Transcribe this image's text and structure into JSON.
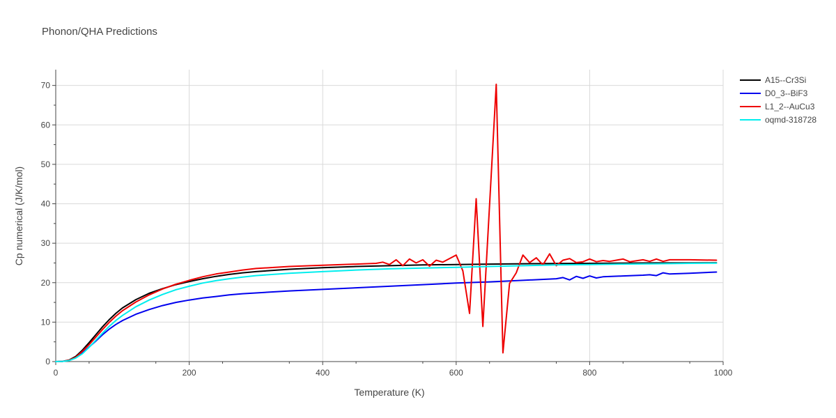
{
  "chart_data": {
    "type": "line",
    "title": "Phonon/QHA Predictions",
    "xlabel": "Temperature (K)",
    "ylabel": "Cp numerical (J/K/mol)",
    "xlim": [
      0,
      1000
    ],
    "ylim": [
      0,
      74
    ],
    "x_ticks": [
      0,
      200,
      400,
      600,
      800,
      1000
    ],
    "y_ticks": [
      0,
      10,
      20,
      30,
      40,
      50,
      60,
      70
    ],
    "grid": true,
    "legend_position": "top-right",
    "series": [
      {
        "name": "A15--Cr3Si",
        "color": "#000000",
        "points": [
          [
            0,
            0
          ],
          [
            10,
            0.05
          ],
          [
            20,
            0.4
          ],
          [
            30,
            1.3
          ],
          [
            40,
            2.9
          ],
          [
            50,
            4.8
          ],
          [
            60,
            6.8
          ],
          [
            70,
            8.8
          ],
          [
            80,
            10.6
          ],
          [
            90,
            12.2
          ],
          [
            100,
            13.6
          ],
          [
            120,
            15.7
          ],
          [
            140,
            17.3
          ],
          [
            160,
            18.5
          ],
          [
            180,
            19.5
          ],
          [
            200,
            20.3
          ],
          [
            220,
            21.0
          ],
          [
            240,
            21.6
          ],
          [
            260,
            22.1
          ],
          [
            280,
            22.5
          ],
          [
            300,
            22.8
          ],
          [
            350,
            23.4
          ],
          [
            400,
            23.8
          ],
          [
            450,
            24.1
          ],
          [
            500,
            24.3
          ],
          [
            550,
            24.5
          ],
          [
            600,
            24.6
          ],
          [
            650,
            24.7
          ],
          [
            700,
            24.8
          ],
          [
            750,
            24.85
          ],
          [
            800,
            24.9
          ],
          [
            850,
            24.95
          ],
          [
            900,
            25.0
          ],
          [
            950,
            25.0
          ],
          [
            990,
            25.05
          ]
        ]
      },
      {
        "name": "D0_3--BiF3",
        "color": "#0000ee",
        "points": [
          [
            0,
            0
          ],
          [
            10,
            0.04
          ],
          [
            20,
            0.3
          ],
          [
            30,
            1.0
          ],
          [
            40,
            2.2
          ],
          [
            50,
            3.7
          ],
          [
            60,
            5.2
          ],
          [
            70,
            6.8
          ],
          [
            80,
            8.2
          ],
          [
            90,
            9.4
          ],
          [
            100,
            10.4
          ],
          [
            120,
            12.0
          ],
          [
            140,
            13.2
          ],
          [
            160,
            14.2
          ],
          [
            180,
            15.0
          ],
          [
            200,
            15.6
          ],
          [
            220,
            16.1
          ],
          [
            240,
            16.5
          ],
          [
            260,
            16.9
          ],
          [
            280,
            17.2
          ],
          [
            300,
            17.4
          ],
          [
            350,
            17.9
          ],
          [
            400,
            18.3
          ],
          [
            450,
            18.7
          ],
          [
            500,
            19.1
          ],
          [
            550,
            19.5
          ],
          [
            600,
            19.9
          ],
          [
            650,
            20.2
          ],
          [
            700,
            20.6
          ],
          [
            750,
            21.0
          ],
          [
            760,
            21.3
          ],
          [
            770,
            20.7
          ],
          [
            780,
            21.6
          ],
          [
            790,
            21.1
          ],
          [
            800,
            21.7
          ],
          [
            810,
            21.2
          ],
          [
            820,
            21.5
          ],
          [
            850,
            21.7
          ],
          [
            880,
            21.9
          ],
          [
            890,
            22.0
          ],
          [
            900,
            21.8
          ],
          [
            910,
            22.5
          ],
          [
            920,
            22.2
          ],
          [
            950,
            22.4
          ],
          [
            990,
            22.7
          ]
        ]
      },
      {
        "name": "L1_2--AuCu3",
        "color": "#ee0000",
        "points": [
          [
            0,
            0
          ],
          [
            10,
            0.05
          ],
          [
            20,
            0.35
          ],
          [
            30,
            1.1
          ],
          [
            40,
            2.6
          ],
          [
            50,
            4.3
          ],
          [
            60,
            6.2
          ],
          [
            70,
            8.1
          ],
          [
            80,
            9.9
          ],
          [
            90,
            11.5
          ],
          [
            100,
            12.9
          ],
          [
            120,
            15.1
          ],
          [
            140,
            16.9
          ],
          [
            160,
            18.4
          ],
          [
            180,
            19.6
          ],
          [
            200,
            20.6
          ],
          [
            220,
            21.5
          ],
          [
            240,
            22.2
          ],
          [
            260,
            22.7
          ],
          [
            280,
            23.2
          ],
          [
            300,
            23.6
          ],
          [
            350,
            24.1
          ],
          [
            400,
            24.4
          ],
          [
            450,
            24.7
          ],
          [
            480,
            24.9
          ],
          [
            490,
            25.2
          ],
          [
            500,
            24.6
          ],
          [
            510,
            25.8
          ],
          [
            520,
            24.3
          ],
          [
            530,
            26.0
          ],
          [
            540,
            25.0
          ],
          [
            550,
            25.8
          ],
          [
            560,
            24.2
          ],
          [
            570,
            25.7
          ],
          [
            580,
            25.2
          ],
          [
            600,
            27.0
          ],
          [
            610,
            23.0
          ],
          [
            620,
            12.2
          ],
          [
            630,
            41.3
          ],
          [
            640,
            8.9
          ],
          [
            660,
            70.3
          ],
          [
            670,
            2.2
          ],
          [
            680,
            19.8
          ],
          [
            690,
            22.5
          ],
          [
            700,
            27.0
          ],
          [
            710,
            25.1
          ],
          [
            720,
            26.3
          ],
          [
            730,
            24.5
          ],
          [
            740,
            27.3
          ],
          [
            750,
            24.3
          ],
          [
            760,
            25.7
          ],
          [
            770,
            26.1
          ],
          [
            780,
            25.1
          ],
          [
            790,
            25.3
          ],
          [
            800,
            26.0
          ],
          [
            810,
            25.3
          ],
          [
            820,
            25.6
          ],
          [
            830,
            25.4
          ],
          [
            850,
            26.0
          ],
          [
            860,
            25.3
          ],
          [
            880,
            25.8
          ],
          [
            890,
            25.4
          ],
          [
            900,
            26.0
          ],
          [
            910,
            25.4
          ],
          [
            920,
            25.8
          ],
          [
            950,
            25.8
          ],
          [
            990,
            25.7
          ]
        ]
      },
      {
        "name": "oqmd-318728",
        "color": "#00eeee",
        "points": [
          [
            0,
            0
          ],
          [
            10,
            0.03
          ],
          [
            20,
            0.25
          ],
          [
            30,
            0.9
          ],
          [
            40,
            2.0
          ],
          [
            50,
            3.6
          ],
          [
            60,
            5.4
          ],
          [
            70,
            7.2
          ],
          [
            80,
            8.9
          ],
          [
            90,
            10.4
          ],
          [
            100,
            11.7
          ],
          [
            120,
            13.9
          ],
          [
            140,
            15.6
          ],
          [
            160,
            17.0
          ],
          [
            180,
            18.2
          ],
          [
            200,
            19.1
          ],
          [
            220,
            19.9
          ],
          [
            240,
            20.5
          ],
          [
            260,
            21.0
          ],
          [
            280,
            21.4
          ],
          [
            300,
            21.8
          ],
          [
            350,
            22.4
          ],
          [
            400,
            22.8
          ],
          [
            450,
            23.2
          ],
          [
            500,
            23.5
          ],
          [
            550,
            23.7
          ],
          [
            600,
            23.9
          ],
          [
            650,
            24.1
          ],
          [
            700,
            24.3
          ],
          [
            750,
            24.5
          ],
          [
            800,
            24.6
          ],
          [
            850,
            24.7
          ],
          [
            900,
            24.8
          ],
          [
            950,
            24.9
          ],
          [
            990,
            24.95
          ]
        ]
      }
    ]
  }
}
